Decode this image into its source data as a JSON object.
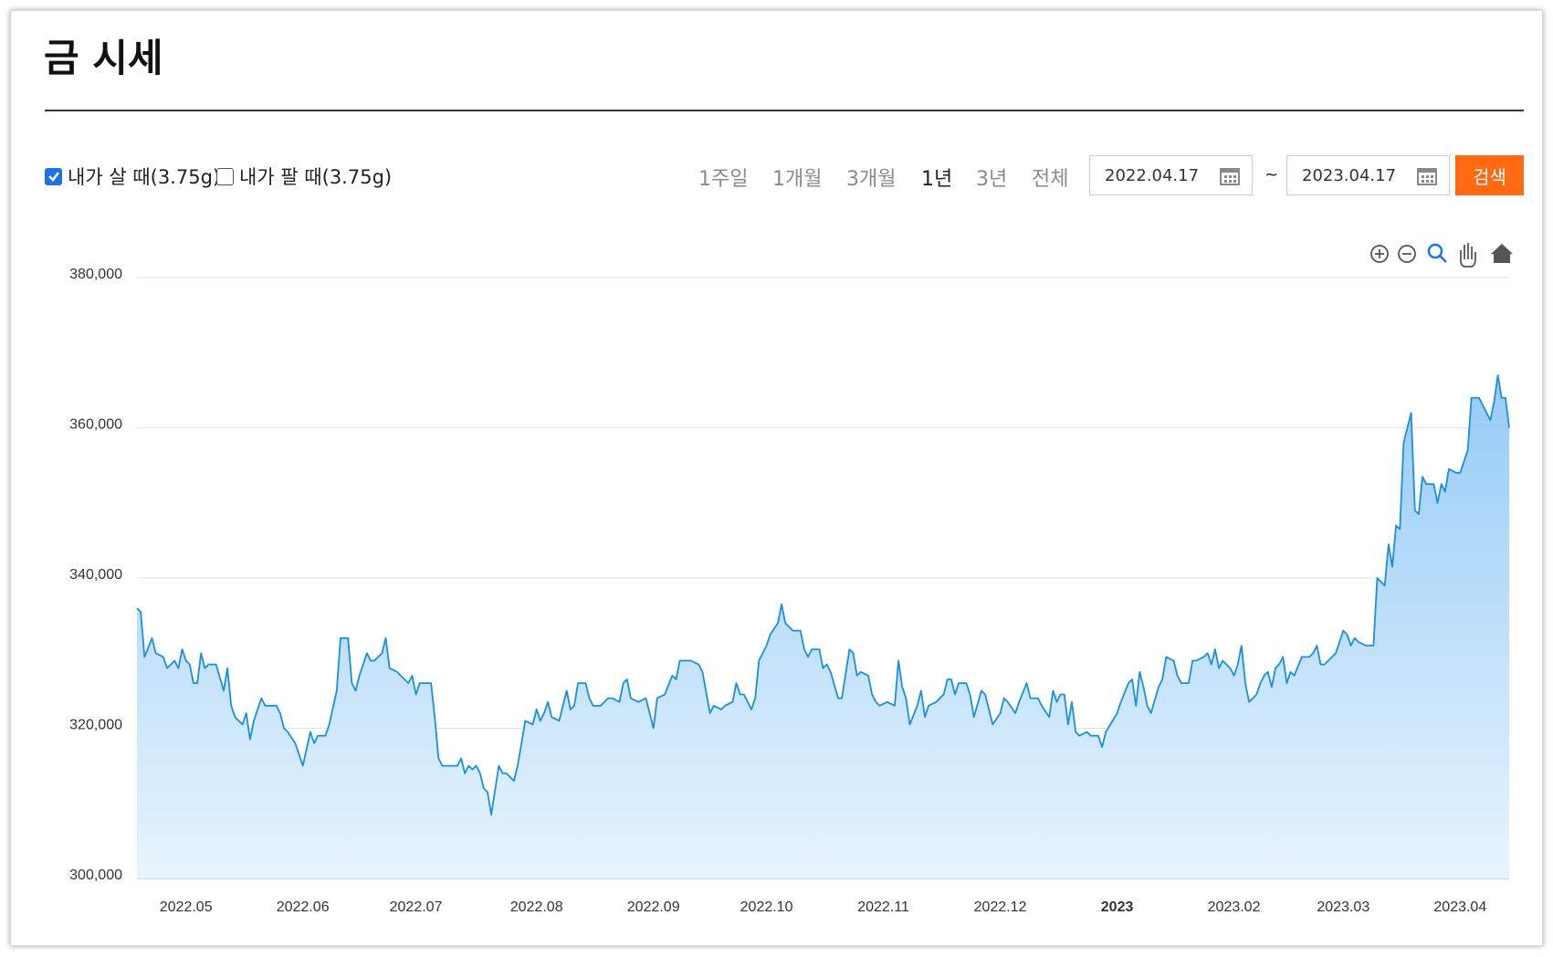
{
  "header": {
    "title": "금 시세"
  },
  "ui": {
    "options": [
      {
        "label": "내가 살 때(3.75g)",
        "checked": true
      },
      {
        "label": "내가 팔 때(3.75g)",
        "checked": false
      }
    ],
    "periods": [
      "1주일",
      "1개월",
      "3개월",
      "1년",
      "3년",
      "전체"
    ],
    "active_period": 3,
    "date_from": "2022.04.17",
    "separator": "~",
    "date_to": "2023.04.17",
    "search": "검색"
  },
  "chart_data": {
    "type": "line",
    "x": [
      0,
      1,
      2,
      4,
      5,
      7,
      8,
      10,
      11,
      12,
      13,
      14,
      15,
      16,
      17,
      18,
      19,
      21,
      23,
      24,
      25,
      26,
      28,
      29,
      30,
      31,
      33,
      34,
      37,
      38,
      39,
      40,
      42,
      43,
      44,
      46,
      47,
      48,
      50,
      51,
      53,
      54,
      56,
      57,
      58,
      59,
      61,
      62,
      63,
      65,
      66,
      67,
      69,
      70,
      72,
      73,
      74,
      75,
      77,
      78,
      79,
      80,
      81,
      83,
      85,
      86,
      87,
      88,
      89,
      90,
      91,
      92,
      93,
      94,
      96,
      97,
      98,
      99,
      100,
      101,
      102,
      103,
      105,
      106,
      107,
      108,
      109,
      110,
      112,
      114,
      115,
      116,
      117,
      119,
      120,
      121,
      123,
      125,
      126,
      128,
      129,
      130,
      131,
      133,
      135,
      136,
      137,
      138,
      140,
      142,
      143,
      144,
      147,
      149,
      150,
      152,
      153,
      155,
      156,
      158,
      159,
      160,
      161,
      163,
      164,
      165,
      166,
      167,
      168,
      170,
      171,
      172,
      173,
      174,
      176,
      177,
      178,
      179,
      181,
      182,
      183,
      184,
      186,
      187,
      189,
      190,
      191,
      192,
      194,
      195,
      196,
      197,
      199,
      201,
      202,
      203,
      204,
      205,
      207,
      208,
      209,
      210,
      212,
      213,
      214,
      215,
      216,
      217,
      218,
      220,
      221,
      222,
      224,
      225,
      227,
      229,
      230,
      231,
      233,
      234,
      236,
      237,
      239,
      240,
      242,
      243,
      244,
      245,
      246,
      247,
      248,
      249,
      250,
      252,
      253,
      255,
      256,
      257,
      260,
      261,
      263,
      264,
      265,
      266,
      267,
      268,
      269,
      271,
      272,
      273,
      275,
      276,
      277,
      279,
      280,
      281,
      283,
      284,
      285,
      286,
      287,
      288,
      290,
      291,
      292,
      293,
      294,
      295,
      297,
      298,
      299,
      300,
      301,
      302,
      303,
      304,
      305,
      306,
      307,
      309,
      311,
      312,
      313,
      314,
      315,
      316,
      318,
      319,
      320,
      321,
      322,
      323,
      324,
      326,
      328,
      329,
      330,
      331,
      332,
      333,
      334,
      335,
      336,
      338,
      339,
      340,
      341,
      342,
      344,
      345,
      346,
      347,
      348,
      350,
      351,
      353,
      354,
      356,
      357,
      359,
      360,
      361,
      362,
      363,
      364
    ],
    "series": [
      {
        "name": "내가 살 때(3.75g)",
        "color": "#1a8fe0",
        "values": [
          336000,
          335500,
          329500,
          332000,
          330000,
          329500,
          328000,
          329000,
          328000,
          330500,
          329000,
          328500,
          326000,
          326000,
          330000,
          328000,
          328500,
          328500,
          325000,
          328000,
          323000,
          321500,
          320500,
          322000,
          318500,
          321000,
          324000,
          323000,
          323000,
          322000,
          320000,
          319500,
          318000,
          316500,
          315000,
          319500,
          318000,
          319000,
          319000,
          320500,
          325000,
          332000,
          332000,
          326000,
          325000,
          327000,
          330000,
          329000,
          329000,
          330000,
          332000,
          328000,
          327500,
          327000,
          326000,
          327000,
          324500,
          326000,
          326000,
          326000,
          321500,
          316000,
          315000,
          315000,
          315000,
          316000,
          314000,
          315000,
          314500,
          315000,
          314000,
          312000,
          311500,
          308500,
          315000,
          314000,
          314000,
          313500,
          313000,
          315000,
          318000,
          321000,
          320500,
          322500,
          321000,
          322000,
          323500,
          321500,
          321000,
          325000,
          322500,
          323000,
          326000,
          326000,
          324000,
          323000,
          323000,
          324000,
          324000,
          323500,
          326000,
          326500,
          324000,
          323500,
          324000,
          322000,
          320000,
          324000,
          324500,
          327000,
          326500,
          329000,
          329000,
          328500,
          327500,
          322000,
          323000,
          322500,
          323000,
          323500,
          326000,
          324500,
          324500,
          322500,
          324000,
          329000,
          330000,
          331000,
          332500,
          334000,
          336500,
          334000,
          333500,
          333000,
          333000,
          330500,
          329500,
          330500,
          330500,
          328000,
          328500,
          327500,
          324000,
          324000,
          330500,
          330000,
          327000,
          327500,
          327000,
          324500,
          323500,
          323000,
          323500,
          323000,
          329000,
          325500,
          324000,
          320500,
          323000,
          325000,
          321500,
          323000,
          323500,
          324000,
          324500,
          326500,
          326500,
          324500,
          326000,
          326000,
          324500,
          321500,
          325000,
          324500,
          320500,
          322000,
          324000,
          323500,
          322000,
          323500,
          326000,
          324000,
          324000,
          323000,
          321500,
          325000,
          323500,
          324500,
          324500,
          320500,
          323500,
          319500,
          319000,
          319500,
          319000,
          319000,
          317500,
          319500,
          322000,
          323500,
          326000,
          326500,
          323000,
          327500,
          325500,
          323000,
          322000,
          325500,
          326500,
          329500,
          329000,
          327000,
          326000,
          326000,
          329000,
          329000,
          329500,
          330000,
          328500,
          330500,
          328000,
          329000,
          328000,
          327000,
          328500,
          331000,
          326000,
          323500,
          324500,
          326000,
          327000,
          327500,
          325500,
          328000,
          328500,
          329500,
          326000,
          327500,
          327000,
          329500,
          329500,
          330000,
          331000,
          328500,
          328500,
          329000,
          330000,
          331500,
          333000,
          332500,
          331000,
          332000,
          331500,
          331000,
          331000,
          340000,
          339500,
          339000,
          344500,
          341500,
          347000,
          346500,
          358000,
          362000,
          349000,
          348500,
          353500,
          352500,
          352500,
          350000,
          352500,
          351500,
          354500,
          354000,
          354000,
          357000,
          364000,
          364000,
          363000,
          361000,
          363500,
          367000,
          364000,
          364000,
          360000
        ]
      }
    ],
    "xlim": [
      0,
      364
    ],
    "xticks": [
      {
        "value": 13,
        "label": "2022.05"
      },
      {
        "value": 44,
        "label": "2022.06"
      },
      {
        "value": 74,
        "label": "2022.07"
      },
      {
        "value": 106,
        "label": "2022.08"
      },
      {
        "value": 137,
        "label": "2022.09"
      },
      {
        "value": 167,
        "label": "2022.10"
      },
      {
        "value": 198,
        "label": "2022.11"
      },
      {
        "value": 229,
        "label": "2022.12"
      },
      {
        "value": 260,
        "label": "2023",
        "bold": true
      },
      {
        "value": 291,
        "label": "2023.02"
      },
      {
        "value": 320,
        "label": "2023.03"
      },
      {
        "value": 351,
        "label": "2023.04"
      }
    ],
    "ylim": [
      300000,
      380000
    ],
    "yticks": [
      {
        "value": 300000,
        "label": "300,000"
      },
      {
        "value": 320000,
        "label": "320,000"
      },
      {
        "value": 340000,
        "label": "340,000"
      },
      {
        "value": 360000,
        "label": "360,000"
      },
      {
        "value": 380000,
        "label": "380,000"
      }
    ],
    "grid": true,
    "fill": true
  }
}
